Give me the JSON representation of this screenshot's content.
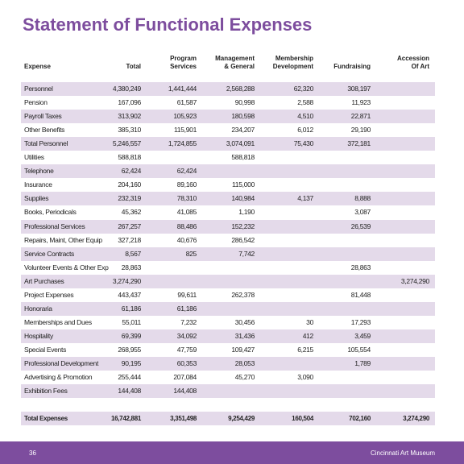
{
  "header": {
    "title": "Statement of Functional Expenses"
  },
  "table": {
    "headers": [
      "Expense",
      "Total",
      "Program\nServices",
      "Management\n& General",
      "Membership\nDevelopment",
      "Fundraising",
      "Accession\nOf Art"
    ],
    "rows": [
      [
        "Personnel",
        "4,380,249",
        "1,441,444",
        "2,568,288",
        "62,320",
        "308,197",
        null
      ],
      [
        "Pension",
        "167,096",
        "61,587",
        "90,998",
        "2,588",
        "11,923",
        null
      ],
      [
        "Payroll Taxes",
        "313,902",
        "105,923",
        "180,598",
        "4,510",
        "22,871",
        null
      ],
      [
        "Other Benefits",
        "385,310",
        "115,901",
        "234,207",
        "6,012",
        "29,190",
        null
      ],
      [
        "Total Personnel",
        "5,246,557",
        "1,724,855",
        "3,074,091",
        "75,430",
        "372,181",
        null
      ],
      [
        "Utilities",
        "588,818",
        null,
        "588,818",
        null,
        null,
        null
      ],
      [
        "Telephone",
        "62,424",
        "62,424",
        null,
        null,
        null,
        null
      ],
      [
        "Insurance",
        "204,160",
        "89,160",
        "115,000",
        null,
        null,
        null
      ],
      [
        "Supplies",
        "232,319",
        "78,310",
        "140,984",
        "4,137",
        "8,888",
        null
      ],
      [
        "Books, Periodicals",
        "45,362",
        "41,085",
        "1,190",
        null,
        "3,087",
        null
      ],
      [
        "Professional Services",
        "267,257",
        "88,486",
        "152,232",
        null,
        "26,539",
        null
      ],
      [
        "Repairs, Maint, Other Equip",
        "327,218",
        "40,676",
        "286,542",
        null,
        null,
        null
      ],
      [
        "Service Contracts",
        "8,567",
        "825",
        "7,742",
        null,
        null,
        null
      ],
      [
        "Volunteer Events & Other Exp",
        "28,863",
        null,
        null,
        null,
        "28,863",
        null
      ],
      [
        "Art Purchases",
        "3,274,290",
        null,
        null,
        null,
        null,
        "3,274,290"
      ],
      [
        "Project Expenses",
        "443,437",
        "99,611",
        "262,378",
        null,
        "81,448",
        null
      ],
      [
        "Honoraria",
        "61,186",
        "61,186",
        null,
        null,
        null,
        null
      ],
      [
        "Memberships and Dues",
        "55,011",
        "7,232",
        "30,456",
        "30",
        "17,293",
        null
      ],
      [
        "Hospitality",
        "69,399",
        "34,092",
        "31,436",
        "412",
        "3,459",
        null
      ],
      [
        "Special Events",
        "268,955",
        "47,759",
        "109,427",
        "6,215",
        "105,554",
        null
      ],
      [
        "Professional Development",
        "90,195",
        "60,353",
        "28,053",
        null,
        "1,789",
        null
      ],
      [
        "Advertising & Promotion",
        "255,444",
        "207,084",
        "45,270",
        "3,090",
        null,
        null
      ],
      [
        "Exhibition Fees",
        "144,408",
        "144,408",
        null,
        null,
        null,
        null
      ]
    ],
    "total": [
      "Total Expenses",
      "16,742,881",
      "3,351,498",
      "9,254,429",
      "160,504",
      "702,160",
      "3,274,290"
    ]
  },
  "footer": {
    "page": "36",
    "org": "Cincinnati Art Museum"
  }
}
